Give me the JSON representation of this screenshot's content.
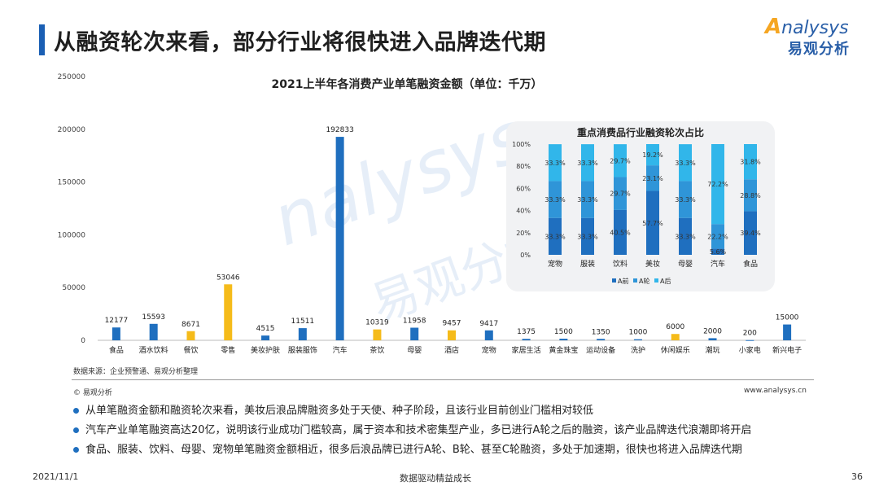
{
  "header": {
    "title": "从融资轮次来看，部分行业将很快进入品牌迭代期",
    "logo_text": "nalysys",
    "logo_letter": "A",
    "logo_sub": "易观分析"
  },
  "watermark": {
    "text": "nalysys",
    "text_cn": "易观分析"
  },
  "colors": {
    "blue": "#1f6fbf",
    "yellow": "#f5bb1a",
    "a_before": "#1f6fbf",
    "a_round": "#2f95d8",
    "a_after": "#31b6ea"
  },
  "chart_data": [
    {
      "type": "bar",
      "title": "2021上半年各消费产业单笔融资金额（单位：千万）",
      "categories": [
        "食品",
        "酒水饮料",
        "餐饮",
        "零售",
        "美妆护肤",
        "服装服饰",
        "汽车",
        "茶饮",
        "母婴",
        "酒店",
        "宠物",
        "家居生活",
        "黄金珠宝",
        "运动设备",
        "洗护",
        "休闲娱乐",
        "潮玩",
        "小家电",
        "新兴电子"
      ],
      "values": [
        12177,
        15593,
        8671,
        53046,
        4515,
        11511,
        192833,
        10319,
        11958,
        9457,
        9417,
        1375,
        1500,
        1350,
        1000,
        6000,
        2000,
        200,
        15000
      ],
      "value_labels": [
        "12177",
        "15593",
        "8671",
        "53046",
        "4515",
        "11511",
        "192833",
        "10319",
        "11958",
        "9457",
        "9417",
        "1375",
        "1500",
        "1350",
        "1000",
        "6000",
        "2000",
        "200",
        "15000"
      ],
      "highlight": [
        false,
        false,
        true,
        true,
        false,
        false,
        false,
        true,
        false,
        true,
        false,
        false,
        false,
        false,
        false,
        true,
        false,
        false,
        false
      ],
      "ylim": [
        0,
        250000
      ],
      "yticks": [
        0,
        50000,
        100000,
        150000,
        200000,
        250000
      ],
      "ytick_labels": [
        "0",
        "50000",
        "100000",
        "150000",
        "200000",
        "250000"
      ],
      "grid": false
    },
    {
      "type": "bar",
      "stacked": true,
      "title": "重点消费品行业融资轮次占比",
      "categories": [
        "宠物",
        "服装",
        "饮料",
        "美妆",
        "母婴",
        "汽车",
        "食品"
      ],
      "series": [
        {
          "name": "A前",
          "values": [
            33.3,
            33.3,
            40.5,
            57.7,
            33.3,
            5.6,
            39.4
          ],
          "labels": [
            "33.3%",
            "33.3%",
            "40.5%",
            "57.7%",
            "33.3%",
            "5.6%",
            "39.4%"
          ]
        },
        {
          "name": "A轮",
          "values": [
            33.3,
            33.3,
            29.7,
            23.1,
            33.3,
            22.2,
            28.8
          ],
          "labels": [
            "33.3%",
            "33.3%",
            "29.7%",
            "23.1%",
            "33.3%",
            "22.2%",
            "28.8%"
          ]
        },
        {
          "name": "A后",
          "values": [
            33.3,
            33.3,
            29.7,
            19.2,
            33.3,
            72.2,
            31.8
          ],
          "labels": [
            "33.3%",
            "33.3%",
            "29.7%",
            "19.2%",
            "33.3%",
            "72.2%",
            "31.8%"
          ]
        }
      ],
      "ylim": [
        0,
        100
      ],
      "ytick_labels": [
        "0%",
        "20%",
        "40%",
        "60%",
        "80%",
        "100%"
      ],
      "legend": "bottom"
    }
  ],
  "source": "数据来源：企业预警通、易观分析整理",
  "copyright": "© 易观分析",
  "website": "www.analysys.cn",
  "bullets": [
    "从单笔融资金额和融资轮次来看，美妆后浪品牌融资多处于天使、种子阶段，且该行业目前创业门槛相对较低",
    "汽车产业单笔融资高达20亿，说明该行业成功门槛较高，属于资本和技术密集型产业，多已进行A轮之后的融资，该产业品牌迭代浪潮即将开启",
    "食品、服装、饮料、母婴、宠物单笔融资金额相近，很多后浪品牌已进行A轮、B轮、甚至C轮融资，多处于加速期，很快也将进入品牌迭代期"
  ],
  "footer": {
    "date": "2021/11/1",
    "slogan": "数据驱动精益成长",
    "page": "36"
  }
}
